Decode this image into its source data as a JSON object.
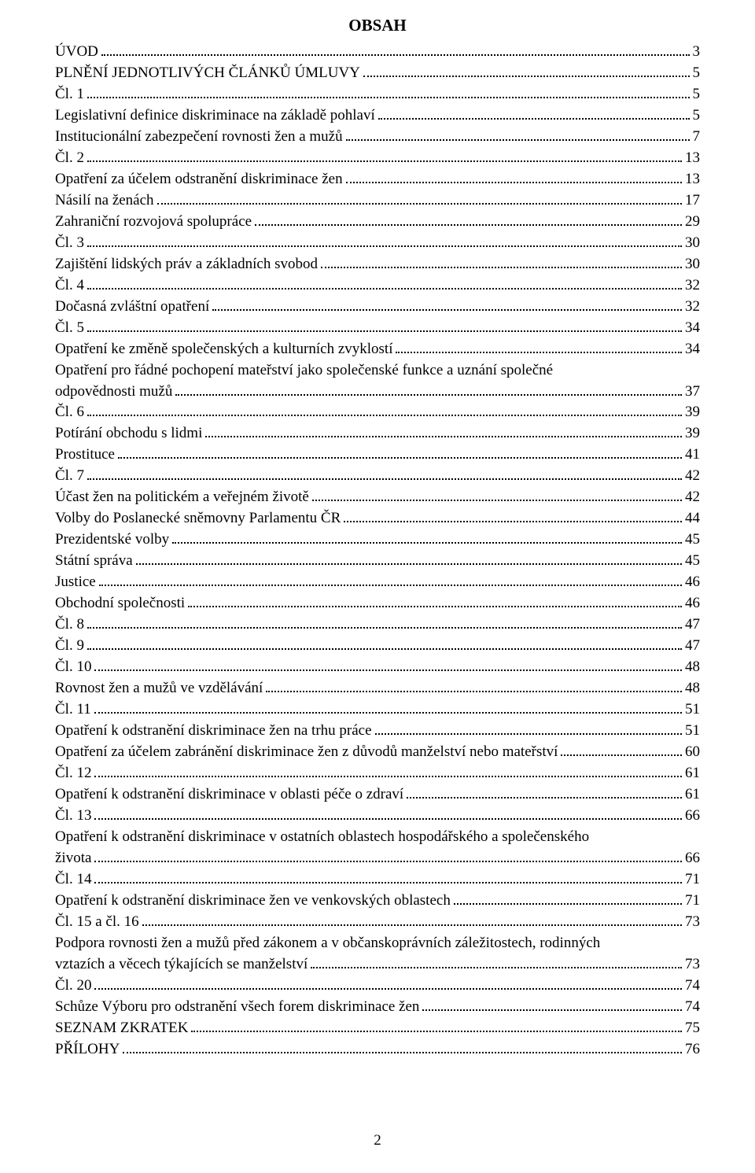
{
  "title": "OBSAH",
  "page_number": "2",
  "colors": {
    "text": "#000000",
    "background": "#ffffff"
  },
  "typography": {
    "family": "Times New Roman",
    "body_size_pt": 14,
    "title_size_pt": 16,
    "title_weight": "bold"
  },
  "entries": [
    {
      "label": "ÚVOD",
      "page": "3"
    },
    {
      "label": "PLNĚNÍ JEDNOTLIVÝCH ČLÁNKŮ ÚMLUVY",
      "page": "5"
    },
    {
      "label": "Čl. 1",
      "page": "5"
    },
    {
      "label": "Legislativní definice diskriminace na základě pohlaví",
      "page": "5"
    },
    {
      "label": "Institucionální zabezpečení rovnosti žen a mužů",
      "page": "7"
    },
    {
      "label": "Čl. 2",
      "page": "13"
    },
    {
      "label": "Opatření za účelem odstranění diskriminace žen",
      "page": "13"
    },
    {
      "label": "Násilí na ženách",
      "page": "17"
    },
    {
      "label": "Zahraniční rozvojová spolupráce",
      "page": "29"
    },
    {
      "label": "Čl. 3",
      "page": "30"
    },
    {
      "label": "Zajištění lidských práv a základních svobod",
      "page": "30"
    },
    {
      "label": "Čl. 4",
      "page": "32"
    },
    {
      "label": "Dočasná zvláštní opatření",
      "page": "32"
    },
    {
      "label": "Čl. 5",
      "page": "34"
    },
    {
      "label": "Opatření ke změně společenských a kulturních zvyklostí",
      "page": "34"
    },
    {
      "label": "Opatření pro řádné pochopení mateřství jako společenské funkce a uznání společné odpovědnosti mužů",
      "page": "37",
      "wrap_tail": "odpovědnosti mužů",
      "wrap_head": "Opatření pro řádné pochopení mateřství jako společenské funkce a uznání společné"
    },
    {
      "label": "Čl. 6",
      "page": "39"
    },
    {
      "label": "Potírání obchodu s lidmi",
      "page": "39"
    },
    {
      "label": "Prostituce",
      "page": "41"
    },
    {
      "label": "Čl. 7",
      "page": "42"
    },
    {
      "label": "Účast žen na politickém a veřejném životě",
      "page": "42"
    },
    {
      "label": "Volby do Poslanecké sněmovny Parlamentu ČR",
      "page": "44"
    },
    {
      "label": "Prezidentské volby",
      "page": "45"
    },
    {
      "label": "Státní správa",
      "page": "45"
    },
    {
      "label": "Justice",
      "page": "46"
    },
    {
      "label": "Obchodní společnosti",
      "page": "46"
    },
    {
      "label": "Čl. 8",
      "page": "47"
    },
    {
      "label": "Čl. 9",
      "page": "47"
    },
    {
      "label": "Čl. 10",
      "page": "48"
    },
    {
      "label": "Rovnost žen a mužů ve vzdělávání",
      "page": "48"
    },
    {
      "label": "Čl. 11",
      "page": "51"
    },
    {
      "label": "Opatření k odstranění diskriminace žen na trhu práce",
      "page": "51"
    },
    {
      "label": "Opatření za účelem zabránění diskriminace žen z důvodů manželství nebo mateřství",
      "page": "60"
    },
    {
      "label": "Čl. 12",
      "page": "61"
    },
    {
      "label": "Opatření k odstranění diskriminace v oblasti péče o zdraví",
      "page": "61"
    },
    {
      "label": "Čl. 13",
      "page": "66"
    },
    {
      "label": "Opatření k odstranění diskriminace v ostatních oblastech hospodářského a společenského života",
      "page": "66",
      "wrap_tail": "života",
      "wrap_head": "Opatření k odstranění diskriminace v ostatních oblastech hospodářského a společenského"
    },
    {
      "label": "Čl. 14",
      "page": "71"
    },
    {
      "label": "Opatření k odstranění diskriminace žen ve venkovských oblastech",
      "page": "71"
    },
    {
      "label": "Čl. 15 a čl. 16",
      "page": "73"
    },
    {
      "label": "Podpora rovnosti žen a mužů před zákonem a v občanskoprávních záležitostech, rodinných vztazích a věcech týkajících se manželství",
      "page": "73",
      "wrap_tail": "vztazích a věcech týkajících se manželství",
      "wrap_head": "Podpora rovnosti žen a mužů před zákonem a v občanskoprávních záležitostech, rodinných"
    },
    {
      "label": "Čl. 20",
      "page": "74"
    },
    {
      "label": "Schůze Výboru pro odstranění všech forem diskriminace žen",
      "page": "74"
    },
    {
      "label": "SEZNAM ZKRATEK",
      "page": "75"
    },
    {
      "label": "PŘÍLOHY",
      "page": "76"
    }
  ]
}
